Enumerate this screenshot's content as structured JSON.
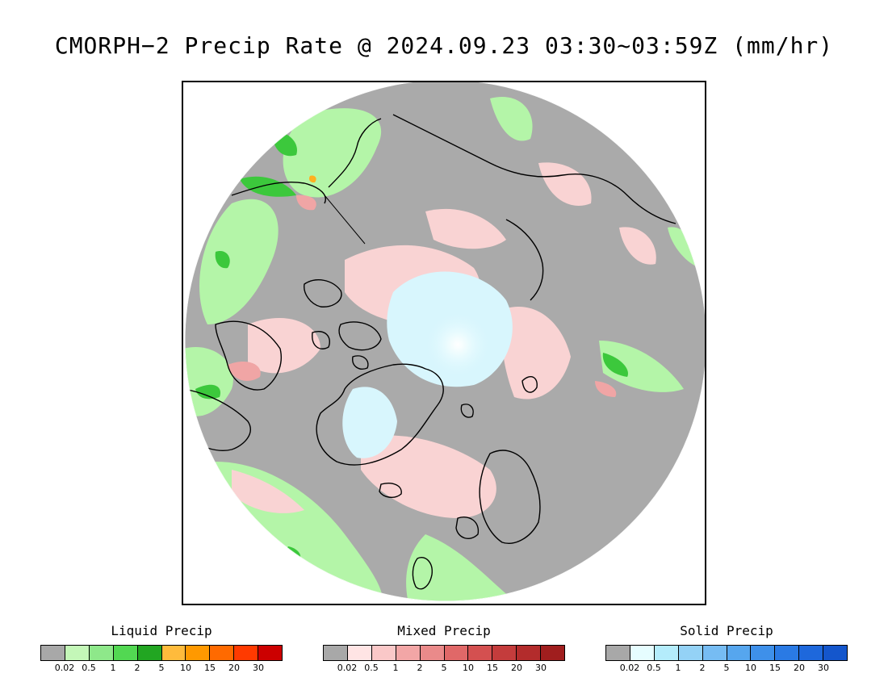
{
  "title": "CMORPH−2 Precip Rate @ 2024.09.23 03:30~03:59Z (mm/hr)",
  "map": {
    "projection": "north-polar-stereographic",
    "colors": {
      "no_precip": "#aaaaaa",
      "liquid_light": "#b4f5a8",
      "liquid_mid": "#82e87a",
      "liquid_heavy": "#3cc83c",
      "mixed_light": "#f9d3d3",
      "mixed_mid": "#f0a5a5",
      "solid_light": "#d8f6fd",
      "solid_core": "#ffffff",
      "coastline": "#000000"
    }
  },
  "legends": [
    {
      "title": "Liquid Precip",
      "colors": [
        "#a8a8a8",
        "#c4f7b8",
        "#8ee88a",
        "#52d852",
        "#22a622",
        "#ffbb3c",
        "#ff9900",
        "#ff6a00",
        "#ff3a00",
        "#cc0000"
      ],
      "ticks": [
        "0.02",
        "0.5",
        "1",
        "2",
        "5",
        "10",
        "15",
        "20",
        "30"
      ]
    },
    {
      "title": "Mixed Precip",
      "colors": [
        "#a8a8a8",
        "#ffe4e4",
        "#fac8c8",
        "#f2a6a6",
        "#ea8a8a",
        "#e06868",
        "#d45050",
        "#c43c3c",
        "#b32c2c",
        "#a01e1e"
      ],
      "ticks": [
        "0.02",
        "0.5",
        "1",
        "2",
        "5",
        "10",
        "15",
        "20",
        "30"
      ]
    },
    {
      "title": "Solid Precip",
      "colors": [
        "#a8a8a8",
        "#e6fdff",
        "#b4ecfb",
        "#94d2f6",
        "#76bcf3",
        "#56a6ee",
        "#3e90ea",
        "#2a7ae4",
        "#1e68dc",
        "#1456cc"
      ],
      "ticks": [
        "0.02",
        "0.5",
        "1",
        "2",
        "5",
        "10",
        "15",
        "20",
        "30"
      ]
    }
  ]
}
